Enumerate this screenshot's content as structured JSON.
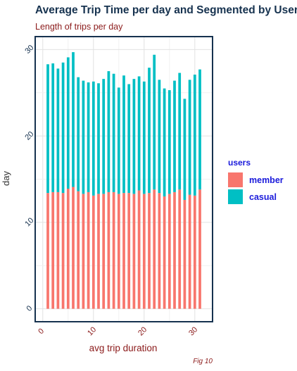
{
  "chart_data": {
    "type": "bar",
    "title": "Average Trip Time per day and Segmented by Users",
    "subtitle": "Length of trips per day",
    "xlabel": "avg trip duration",
    "ylabel": "day",
    "caption": "Fig 10",
    "xlim": [
      -1.5,
      33.5
    ],
    "ylim": [
      -1.5,
      31.5
    ],
    "xticks": [
      0,
      10,
      20,
      30
    ],
    "yticks": [
      0,
      10,
      20,
      30
    ],
    "grid": true,
    "legend_title": "users",
    "legend_position": "right",
    "stacked": true,
    "x": [
      1,
      2,
      3,
      4,
      5,
      6,
      7,
      8,
      9,
      10,
      11,
      12,
      13,
      14,
      15,
      16,
      17,
      18,
      19,
      20,
      21,
      22,
      23,
      24,
      25,
      26,
      27,
      28,
      29,
      30,
      31
    ],
    "series": [
      {
        "name": "member",
        "color": "#f8766d",
        "values": [
          13.4,
          13.5,
          13.5,
          13.4,
          13.9,
          14.1,
          13.6,
          13.3,
          13.5,
          13.1,
          13.3,
          13.3,
          13.5,
          13.5,
          13.3,
          13.4,
          13.4,
          13.3,
          13.7,
          13.3,
          13.4,
          13.8,
          13.4,
          13.0,
          13.3,
          13.5,
          13.8,
          12.6,
          13.2,
          13.1,
          13.8
        ]
      },
      {
        "name": "casual",
        "color": "#00bfc4",
        "values": [
          14.9,
          14.9,
          14.3,
          15.1,
          15.2,
          15.6,
          13.2,
          13.1,
          12.7,
          13.2,
          12.8,
          13.3,
          14.0,
          13.7,
          12.3,
          13.6,
          12.6,
          13.3,
          13.2,
          13.0,
          14.5,
          15.6,
          13.1,
          12.5,
          12.0,
          12.9,
          13.5,
          11.7,
          13.3,
          14.0,
          13.9
        ]
      }
    ]
  }
}
